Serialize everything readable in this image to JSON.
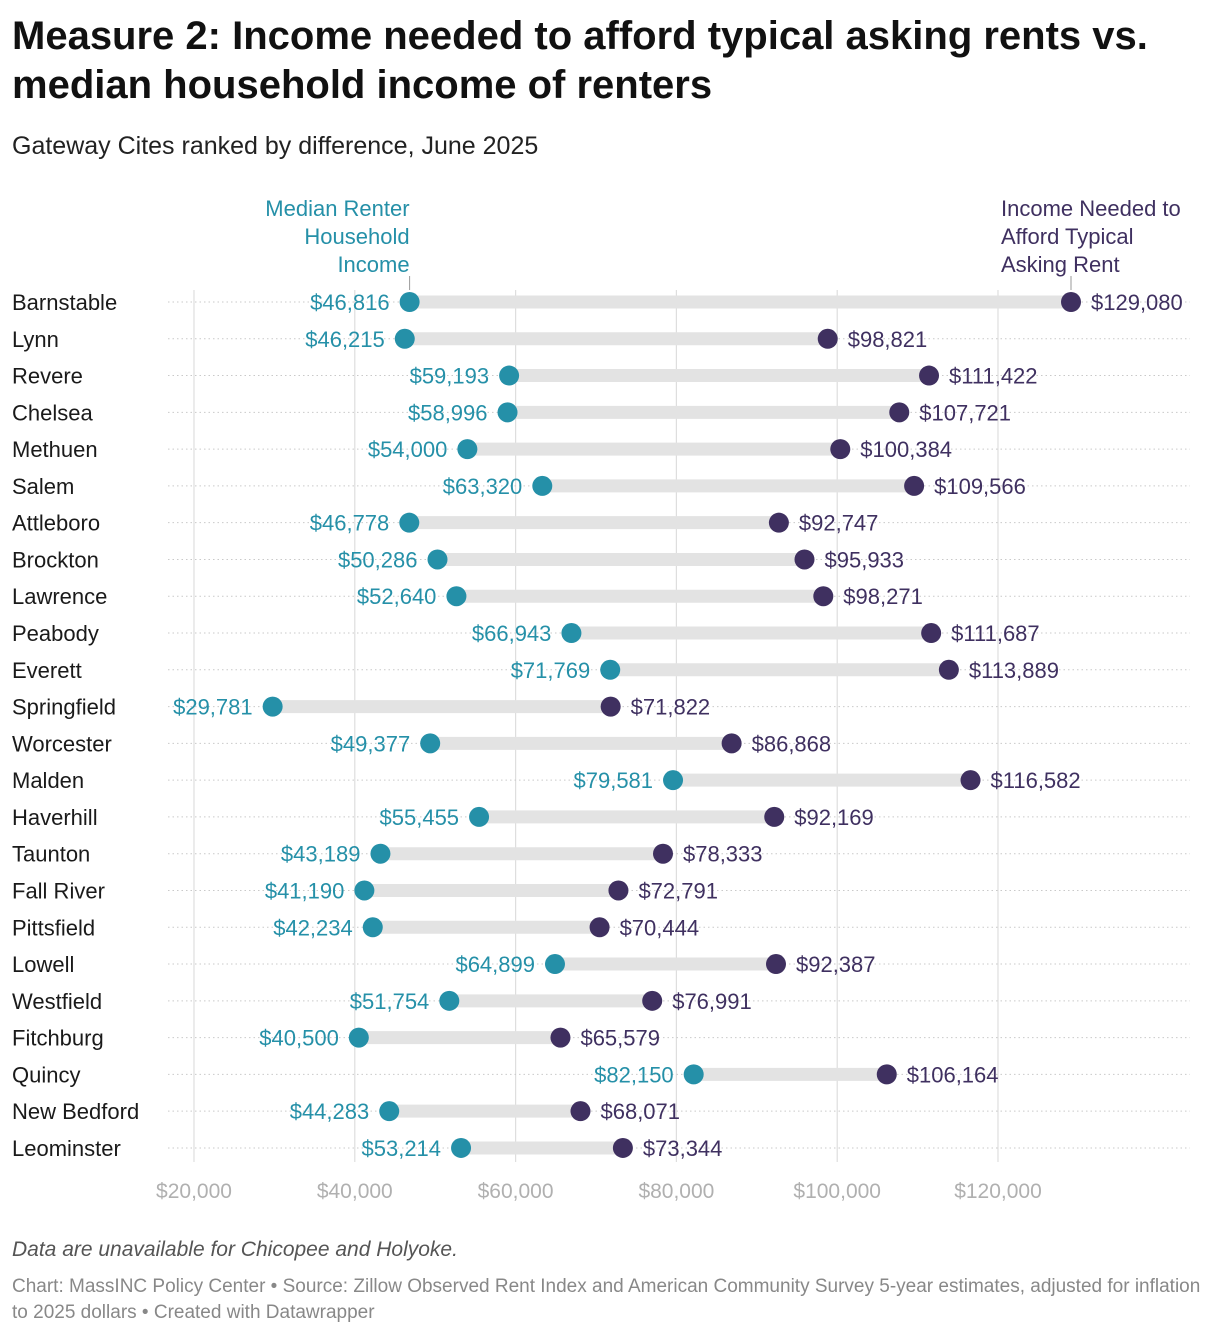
{
  "title": "Measure 2: Income needed to afford typical asking rents vs. median household income of renters",
  "subtitle": "Gateway Cites ranked by difference, June 2025",
  "chart_data": {
    "type": "dot-range",
    "legend": {
      "median": [
        "Median Renter",
        "Household",
        "Income"
      ],
      "needed": [
        "Income Needed to",
        "Afford Typical",
        "Asking Rent"
      ]
    },
    "colors": {
      "median": "#2590a8",
      "needed": "#3f3060",
      "range": "#e3e3e3",
      "grid": "#dedede",
      "tick": "#b0b0b0"
    },
    "xlim": [
      15000,
      140000
    ],
    "xticks": [
      20000,
      40000,
      60000,
      80000,
      100000,
      120000
    ],
    "xtick_labels": [
      "$20,000",
      "$40,000",
      "$60,000",
      "$80,000",
      "$100,000",
      "$120,000"
    ],
    "categories": [
      "Barnstable",
      "Lynn",
      "Revere",
      "Chelsea",
      "Methuen",
      "Salem",
      "Attleboro",
      "Brockton",
      "Lawrence",
      "Peabody",
      "Everett",
      "Springfield",
      "Worcester",
      "Malden",
      "Haverhill",
      "Taunton",
      "Fall River",
      "Pittsfield",
      "Lowell",
      "Westfield",
      "Fitchburg",
      "Quincy",
      "New Bedford",
      "Leominster"
    ],
    "series": [
      {
        "name": "Median Renter Household Income",
        "key": "median",
        "values": [
          46816,
          46215,
          59193,
          58996,
          54000,
          63320,
          46778,
          50286,
          52640,
          66943,
          71769,
          29781,
          49377,
          79581,
          55455,
          43189,
          41190,
          42234,
          64899,
          51754,
          40500,
          82150,
          44283,
          53214
        ],
        "labels": [
          "$46,816",
          "$46,215",
          "$59,193",
          "$58,996",
          "$54,000",
          "$63,320",
          "$46,778",
          "$50,286",
          "$52,640",
          "$66,943",
          "$71,769",
          "$29,781",
          "$49,377",
          "$79,581",
          "$55,455",
          "$43,189",
          "$41,190",
          "$42,234",
          "$64,899",
          "$51,754",
          "$40,500",
          "$82,150",
          "$44,283",
          "$53,214"
        ]
      },
      {
        "name": "Income Needed to Afford Typical Asking Rent",
        "key": "needed",
        "values": [
          129080,
          98821,
          111422,
          107721,
          100384,
          109566,
          92747,
          95933,
          98271,
          111687,
          113889,
          71822,
          86868,
          116582,
          92169,
          78333,
          72791,
          70444,
          92387,
          76991,
          65579,
          106164,
          68071,
          73344
        ],
        "labels": [
          "$129,080",
          "$98,821",
          "$111,422",
          "$107,721",
          "$100,384",
          "$109,566",
          "$92,747",
          "$95,933",
          "$98,271",
          "$111,687",
          "$113,889",
          "$71,822",
          "$86,868",
          "$116,582",
          "$92,169",
          "$78,333",
          "$72,791",
          "$70,444",
          "$92,387",
          "$76,991",
          "$65,579",
          "$106,164",
          "$68,071",
          "$73,344"
        ]
      }
    ]
  },
  "note": "Data are unavailable for Chicopee and Holyoke.",
  "source": "Chart: MassINC Policy Center • Source: Zillow Observed Rent Index and American Community Survey 5-year estimates, adjusted for inflation to 2025 dollars • Created with Datawrapper"
}
